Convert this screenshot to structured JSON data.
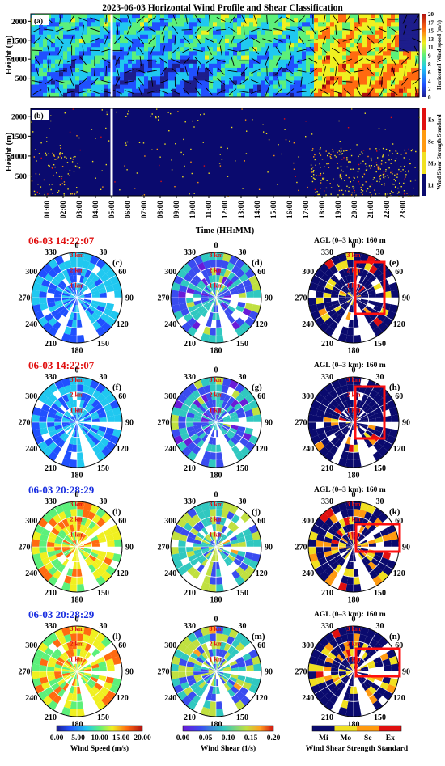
{
  "figure": {
    "title": "2023-06-03 Horizontal Wind Profile and Shear Classification",
    "panel_a_label": "(a)",
    "panel_b_label": "(b)",
    "y_label": "Height (m)",
    "x_label": "Time (HH:MM)",
    "cb_a_label": "Horizontal Wind speed (m/s)",
    "cb_b_label": "Wind Shear Strength Standard",
    "colorbar_a_ticks": [
      "20",
      "17",
      "15",
      "13",
      "11",
      "9",
      "8",
      "6",
      "4",
      "2",
      "0"
    ],
    "colorbar_b_ticks": [
      "Ex",
      "Se",
      "Mo",
      "Li"
    ],
    "y_ticks": [
      "2000",
      "1500",
      "1000",
      "500"
    ],
    "time_ticks": [
      "01:00",
      "02:00",
      "03:00",
      "04:00",
      "05:00",
      "06:00",
      "07:00",
      "08:00",
      "09:00",
      "10:00",
      "11:00",
      "12:00",
      "13:00",
      "14:00",
      "15:00",
      "16:00",
      "17:00",
      "18:00",
      "19:00",
      "20:00",
      "21:00",
      "22:00",
      "23:00"
    ],
    "angles": [
      "0",
      "30",
      "60",
      "90",
      "120",
      "150",
      "180",
      "210",
      "240",
      "270",
      "300",
      "330"
    ],
    "range_labels": [
      "3 km",
      "2 km",
      "1 km"
    ],
    "agl_label": "AGL (0–3 km): 160 m",
    "rows": [
      {
        "time": "06-03 14:22:07",
        "time_color": "#e01010",
        "labels": [
          "(c)",
          "(d)",
          "(e)"
        ],
        "show_agl_label": true
      },
      {
        "time": "06-03 14:22:07",
        "time_color": "#e01010",
        "labels": [
          "(f)",
          "(g)",
          "(h)"
        ],
        "show_agl_label": true
      },
      {
        "time": "06-03 20:28:29",
        "time_color": "#1a2fe0",
        "labels": [
          "(i)",
          "(j)",
          "(k)"
        ],
        "show_agl_label": true
      },
      {
        "time": "06-03 20:28:29",
        "time_color": "#1a2fe0",
        "labels": [
          "(l)",
          "(m)",
          "(n)"
        ],
        "show_agl_label": true
      }
    ],
    "colorbars_bottom": [
      {
        "label": "Wind Speed (m/s)",
        "ticks": [
          "0.00",
          "5.00",
          "10.00",
          "15.00",
          "20.00"
        ],
        "min": 0,
        "max": 20
      },
      {
        "label": "Wind Shear (1/s)",
        "ticks": [
          "0.00",
          "0.05",
          "0.10",
          "0.15",
          "0.20"
        ],
        "min": 0,
        "max": 0.2
      },
      {
        "label": "Wind Shear Strength Standard",
        "ticks": [
          "Mi",
          "Mo",
          "Se",
          "Ex"
        ]
      }
    ]
  },
  "chart_data": {
    "type": "heatmap",
    "title": "2023-06-03 Horizontal Wind Profile and Shear Classification",
    "panels": [
      {
        "id": "a",
        "quantity": "Horizontal Wind speed (m/s)",
        "ylim": [
          0,
          2200
        ],
        "xlim": [
          "00:00",
          "24:00"
        ],
        "colorbar_range": [
          0,
          20
        ],
        "profile_gap_time": "05:00"
      },
      {
        "id": "b",
        "quantity": "Wind Shear Strength Standard",
        "ylim": [
          0,
          2200
        ],
        "categories": [
          "Li",
          "Mo",
          "Se",
          "Ex"
        ],
        "profile_gap_time": "05:00"
      }
    ],
    "ppi_panels": [
      {
        "id": "c",
        "time": "06-03 14:22:07",
        "quantity": "Wind Speed (m/s)",
        "range_km": 3
      },
      {
        "id": "d",
        "time": "06-03 14:22:07",
        "quantity": "Wind Shear (1/s)",
        "range_km": 3
      },
      {
        "id": "e",
        "time": "06-03 14:22:07",
        "quantity": "Wind Shear Strength Standard",
        "agl_m": 160
      },
      {
        "id": "f",
        "time": "06-03 14:22:07",
        "quantity": "Wind Speed (m/s)",
        "range_km": 3
      },
      {
        "id": "g",
        "time": "06-03 14:22:07",
        "quantity": "Wind Shear (1/s)",
        "range_km": 3
      },
      {
        "id": "h",
        "time": "06-03 14:22:07",
        "quantity": "Wind Shear Strength Standard",
        "agl_m": 160
      },
      {
        "id": "i",
        "time": "06-03 20:28:29",
        "quantity": "Wind Speed (m/s)",
        "range_km": 3
      },
      {
        "id": "j",
        "time": "06-03 20:28:29",
        "quantity": "Wind Shear (1/s)",
        "range_km": 3
      },
      {
        "id": "k",
        "time": "06-03 20:28:29",
        "quantity": "Wind Shear Strength Standard",
        "agl_m": 160
      },
      {
        "id": "l",
        "time": "06-03 20:28:29",
        "quantity": "Wind Speed (m/s)",
        "range_km": 3
      },
      {
        "id": "m",
        "time": "06-03 20:28:29",
        "quantity": "Wind Shear (1/s)",
        "range_km": 3
      },
      {
        "id": "n",
        "time": "06-03 20:28:29",
        "quantity": "Wind Shear Strength Standard",
        "agl_m": 160
      }
    ]
  }
}
